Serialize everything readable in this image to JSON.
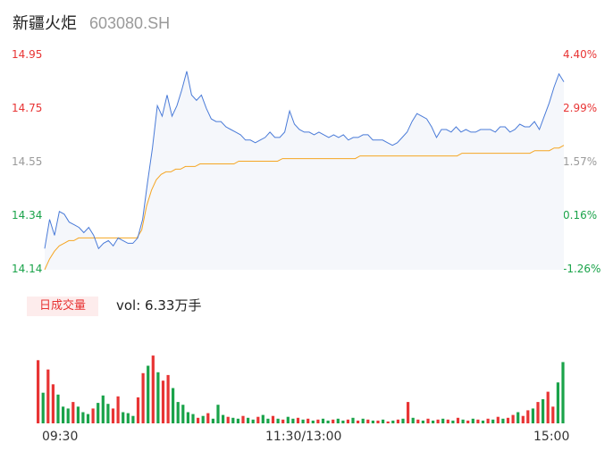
{
  "header": {
    "name": "新疆火炬",
    "code": "603080.SH"
  },
  "volume_panel": {
    "tab_label": "日成交量",
    "vol_label": "vol: 6.33万手"
  },
  "colors": {
    "up": "#e83434",
    "down": "#1aa34a",
    "neutral": "#9a9a9a",
    "price_line": "#4a7bd8",
    "avg_line": "#f5a623",
    "area_fill": "#f5f7fb",
    "tab_bg": "#fdecec"
  },
  "chart_data": {
    "type": "line",
    "x_axis": {
      "tick_labels": [
        "09:30",
        "11:30/13:00",
        "15:00"
      ]
    },
    "y_axis_left": {
      "tick_labels": [
        "14.95",
        "14.75",
        "14.55",
        "14.34",
        "14.14"
      ],
      "range": [
        14.14,
        14.95
      ],
      "tick_colors": [
        "up",
        "up",
        "neutral",
        "down",
        "down"
      ]
    },
    "y_axis_right": {
      "tick_labels": [
        "4.40%",
        "2.99%",
        "1.57%",
        "0.16%",
        "-1.26%"
      ],
      "range": [
        -1.26,
        4.4
      ],
      "tick_colors": [
        "up",
        "up",
        "neutral",
        "down",
        "down"
      ]
    },
    "prev_close": 14.32,
    "series": [
      {
        "type": "line",
        "values": [
          14.22,
          14.33,
          14.27,
          14.36,
          14.35,
          14.32,
          14.31,
          14.3,
          14.28,
          14.3,
          14.27,
          14.22,
          14.24,
          14.25,
          14.23,
          14.26,
          14.25,
          14.24,
          14.24,
          14.26,
          14.33,
          14.47,
          14.6,
          14.76,
          14.72,
          14.8,
          14.72,
          14.76,
          14.82,
          14.89,
          14.8,
          14.78,
          14.8,
          14.75,
          14.71,
          14.7,
          14.7,
          14.68,
          14.67,
          14.66,
          14.65,
          14.63,
          14.63,
          14.62,
          14.63,
          14.64,
          14.66,
          14.64,
          14.64,
          14.66,
          14.74,
          14.69,
          14.67,
          14.66,
          14.66,
          14.65,
          14.66,
          14.65,
          14.64,
          14.65,
          14.64,
          14.65,
          14.63,
          14.64,
          14.64,
          14.65,
          14.65,
          14.63,
          14.63,
          14.63,
          14.62,
          14.61,
          14.62,
          14.64,
          14.66,
          14.7,
          14.73,
          14.72,
          14.71,
          14.68,
          14.64,
          14.67,
          14.67,
          14.66,
          14.68,
          14.66,
          14.67,
          14.66,
          14.66,
          14.67,
          14.67,
          14.67,
          14.66,
          14.68,
          14.68,
          14.66,
          14.67,
          14.69,
          14.68,
          14.68,
          14.7,
          14.67,
          14.72,
          14.77,
          14.83,
          14.88,
          14.85
        ]
      },
      {
        "type": "line",
        "values": [
          14.14,
          14.18,
          14.21,
          14.23,
          14.24,
          14.25,
          14.25,
          14.26,
          14.26,
          14.26,
          14.26,
          14.26,
          14.26,
          14.26,
          14.26,
          14.26,
          14.26,
          14.26,
          14.26,
          14.26,
          14.29,
          14.38,
          14.44,
          14.48,
          14.5,
          14.51,
          14.51,
          14.52,
          14.52,
          14.53,
          14.53,
          14.53,
          14.54,
          14.54,
          14.54,
          14.54,
          14.54,
          14.54,
          14.54,
          14.54,
          14.55,
          14.55,
          14.55,
          14.55,
          14.55,
          14.55,
          14.55,
          14.55,
          14.55,
          14.56,
          14.56,
          14.56,
          14.56,
          14.56,
          14.56,
          14.56,
          14.56,
          14.56,
          14.56,
          14.56,
          14.56,
          14.56,
          14.56,
          14.56,
          14.56,
          14.57,
          14.57,
          14.57,
          14.57,
          14.57,
          14.57,
          14.57,
          14.57,
          14.57,
          14.57,
          14.57,
          14.57,
          14.57,
          14.57,
          14.57,
          14.57,
          14.57,
          14.57,
          14.57,
          14.57,
          14.57,
          14.58,
          14.58,
          14.58,
          14.58,
          14.58,
          14.58,
          14.58,
          14.58,
          14.58,
          14.58,
          14.58,
          14.58,
          14.58,
          14.58,
          14.58,
          14.59,
          14.59,
          14.59,
          14.59,
          14.6,
          14.6,
          14.61
        ]
      }
    ],
    "volume": [
      {
        "v": 0.68,
        "c": "up"
      },
      {
        "v": 0.33,
        "c": "down"
      },
      {
        "v": 0.58,
        "c": "up"
      },
      {
        "v": 0.42,
        "c": "up"
      },
      {
        "v": 0.31,
        "c": "down"
      },
      {
        "v": 0.18,
        "c": "down"
      },
      {
        "v": 0.16,
        "c": "down"
      },
      {
        "v": 0.23,
        "c": "up"
      },
      {
        "v": 0.18,
        "c": "down"
      },
      {
        "v": 0.12,
        "c": "down"
      },
      {
        "v": 0.1,
        "c": "down"
      },
      {
        "v": 0.16,
        "c": "up"
      },
      {
        "v": 0.22,
        "c": "down"
      },
      {
        "v": 0.3,
        "c": "down"
      },
      {
        "v": 0.21,
        "c": "down"
      },
      {
        "v": 0.16,
        "c": "up"
      },
      {
        "v": 0.29,
        "c": "up"
      },
      {
        "v": 0.12,
        "c": "down"
      },
      {
        "v": 0.11,
        "c": "down"
      },
      {
        "v": 0.08,
        "c": "down"
      },
      {
        "v": 0.28,
        "c": "up"
      },
      {
        "v": 0.54,
        "c": "up"
      },
      {
        "v": 0.62,
        "c": "down"
      },
      {
        "v": 0.73,
        "c": "up"
      },
      {
        "v": 0.55,
        "c": "down"
      },
      {
        "v": 0.46,
        "c": "up"
      },
      {
        "v": 0.52,
        "c": "up"
      },
      {
        "v": 0.38,
        "c": "down"
      },
      {
        "v": 0.23,
        "c": "down"
      },
      {
        "v": 0.2,
        "c": "down"
      },
      {
        "v": 0.12,
        "c": "down"
      },
      {
        "v": 0.1,
        "c": "down"
      },
      {
        "v": 0.06,
        "c": "up"
      },
      {
        "v": 0.08,
        "c": "down"
      },
      {
        "v": 0.11,
        "c": "up"
      },
      {
        "v": 0.05,
        "c": "down"
      },
      {
        "v": 0.2,
        "c": "down"
      },
      {
        "v": 0.09,
        "c": "down"
      },
      {
        "v": 0.07,
        "c": "up"
      },
      {
        "v": 0.06,
        "c": "down"
      },
      {
        "v": 0.05,
        "c": "down"
      },
      {
        "v": 0.08,
        "c": "up"
      },
      {
        "v": 0.06,
        "c": "down"
      },
      {
        "v": 0.04,
        "c": "down"
      },
      {
        "v": 0.07,
        "c": "up"
      },
      {
        "v": 0.09,
        "c": "down"
      },
      {
        "v": 0.05,
        "c": "down"
      },
      {
        "v": 0.08,
        "c": "up"
      },
      {
        "v": 0.05,
        "c": "down"
      },
      {
        "v": 0.04,
        "c": "up"
      },
      {
        "v": 0.07,
        "c": "down"
      },
      {
        "v": 0.05,
        "c": "down"
      },
      {
        "v": 0.06,
        "c": "up"
      },
      {
        "v": 0.04,
        "c": "down"
      },
      {
        "v": 0.05,
        "c": "up"
      },
      {
        "v": 0.03,
        "c": "down"
      },
      {
        "v": 0.04,
        "c": "up"
      },
      {
        "v": 0.05,
        "c": "down"
      },
      {
        "v": 0.03,
        "c": "down"
      },
      {
        "v": 0.04,
        "c": "up"
      },
      {
        "v": 0.05,
        "c": "down"
      },
      {
        "v": 0.03,
        "c": "down"
      },
      {
        "v": 0.04,
        "c": "up"
      },
      {
        "v": 0.06,
        "c": "down"
      },
      {
        "v": 0.03,
        "c": "up"
      },
      {
        "v": 0.05,
        "c": "down"
      },
      {
        "v": 0.04,
        "c": "up"
      },
      {
        "v": 0.03,
        "c": "down"
      },
      {
        "v": 0.03,
        "c": "up"
      },
      {
        "v": 0.04,
        "c": "down"
      },
      {
        "v": 0.02,
        "c": "up"
      },
      {
        "v": 0.03,
        "c": "down"
      },
      {
        "v": 0.04,
        "c": "up"
      },
      {
        "v": 0.05,
        "c": "down"
      },
      {
        "v": 0.23,
        "c": "up"
      },
      {
        "v": 0.06,
        "c": "down"
      },
      {
        "v": 0.04,
        "c": "up"
      },
      {
        "v": 0.03,
        "c": "down"
      },
      {
        "v": 0.05,
        "c": "up"
      },
      {
        "v": 0.03,
        "c": "down"
      },
      {
        "v": 0.04,
        "c": "up"
      },
      {
        "v": 0.05,
        "c": "down"
      },
      {
        "v": 0.04,
        "c": "up"
      },
      {
        "v": 0.03,
        "c": "down"
      },
      {
        "v": 0.06,
        "c": "up"
      },
      {
        "v": 0.04,
        "c": "down"
      },
      {
        "v": 0.03,
        "c": "up"
      },
      {
        "v": 0.05,
        "c": "down"
      },
      {
        "v": 0.04,
        "c": "up"
      },
      {
        "v": 0.03,
        "c": "down"
      },
      {
        "v": 0.05,
        "c": "up"
      },
      {
        "v": 0.04,
        "c": "down"
      },
      {
        "v": 0.07,
        "c": "up"
      },
      {
        "v": 0.05,
        "c": "down"
      },
      {
        "v": 0.06,
        "c": "up"
      },
      {
        "v": 0.09,
        "c": "up"
      },
      {
        "v": 0.12,
        "c": "down"
      },
      {
        "v": 0.08,
        "c": "up"
      },
      {
        "v": 0.14,
        "c": "up"
      },
      {
        "v": 0.16,
        "c": "down"
      },
      {
        "v": 0.23,
        "c": "up"
      },
      {
        "v": 0.26,
        "c": "down"
      },
      {
        "v": 0.34,
        "c": "up"
      },
      {
        "v": 0.18,
        "c": "up"
      },
      {
        "v": 0.44,
        "c": "down"
      },
      {
        "v": 0.66,
        "c": "down"
      }
    ]
  }
}
